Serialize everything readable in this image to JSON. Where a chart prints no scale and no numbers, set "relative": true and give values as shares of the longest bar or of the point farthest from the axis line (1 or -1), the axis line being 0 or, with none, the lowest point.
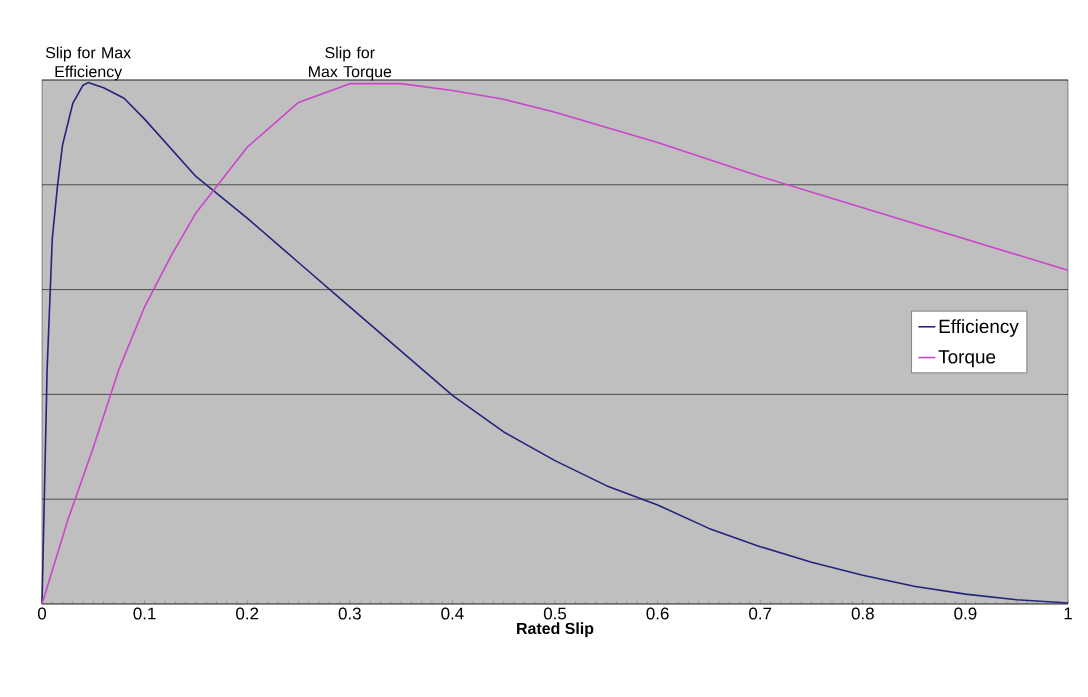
{
  "chart_data": {
    "type": "line",
    "relative": true,
    "xlabel": "Rated Slip",
    "xlim": [
      0,
      1
    ],
    "xticks": [
      0,
      0.1,
      0.2,
      0.3,
      0.4,
      0.5,
      0.6,
      0.7,
      0.8,
      0.9,
      1
    ],
    "grid": "y",
    "legend": "right",
    "marker": "none",
    "line_style": "solid",
    "annotations": [
      {
        "text": "Slip for Max Efficiency",
        "x": 0.045,
        "y": 1
      },
      {
        "text": "Slip for Max Torque",
        "x": 0.3,
        "y": 1
      }
    ],
    "series": [
      {
        "name": "Efficiency",
        "color": "#23237d",
        "x": [
          0,
          0.005,
          0.01,
          0.015,
          0.02,
          0.03,
          0.04,
          0.045,
          0.06,
          0.08,
          0.1,
          0.15,
          0.2,
          0.25,
          0.3,
          0.35,
          0.4,
          0.45,
          0.5,
          0.55,
          0.6,
          0.65,
          0.7,
          0.75,
          0.8,
          0.85,
          0.9,
          0.95,
          1
        ],
        "values": [
          0,
          0.45,
          0.7,
          0.8,
          0.88,
          0.96,
          0.995,
          1,
          0.99,
          0.97,
          0.93,
          0.82,
          0.74,
          0.655,
          0.57,
          0.485,
          0.4,
          0.33,
          0.275,
          0.227,
          0.19,
          0.145,
          0.11,
          0.08,
          0.055,
          0.034,
          0.019,
          0.008,
          0.002
        ]
      },
      {
        "name": "Torque",
        "color": "#cc44cc",
        "x": [
          0,
          0.025,
          0.05,
          0.075,
          0.1,
          0.125,
          0.15,
          0.2,
          0.25,
          0.3,
          0.35,
          0.4,
          0.45,
          0.5,
          0.6,
          0.7,
          0.8,
          0.9,
          1
        ],
        "values": [
          0,
          0.16,
          0.3,
          0.45,
          0.57,
          0.665,
          0.75,
          0.876,
          0.962,
          0.998,
          0.998,
          0.985,
          0.968,
          0.943,
          0.885,
          0.82,
          0.76,
          0.7,
          0.64
        ]
      }
    ]
  }
}
